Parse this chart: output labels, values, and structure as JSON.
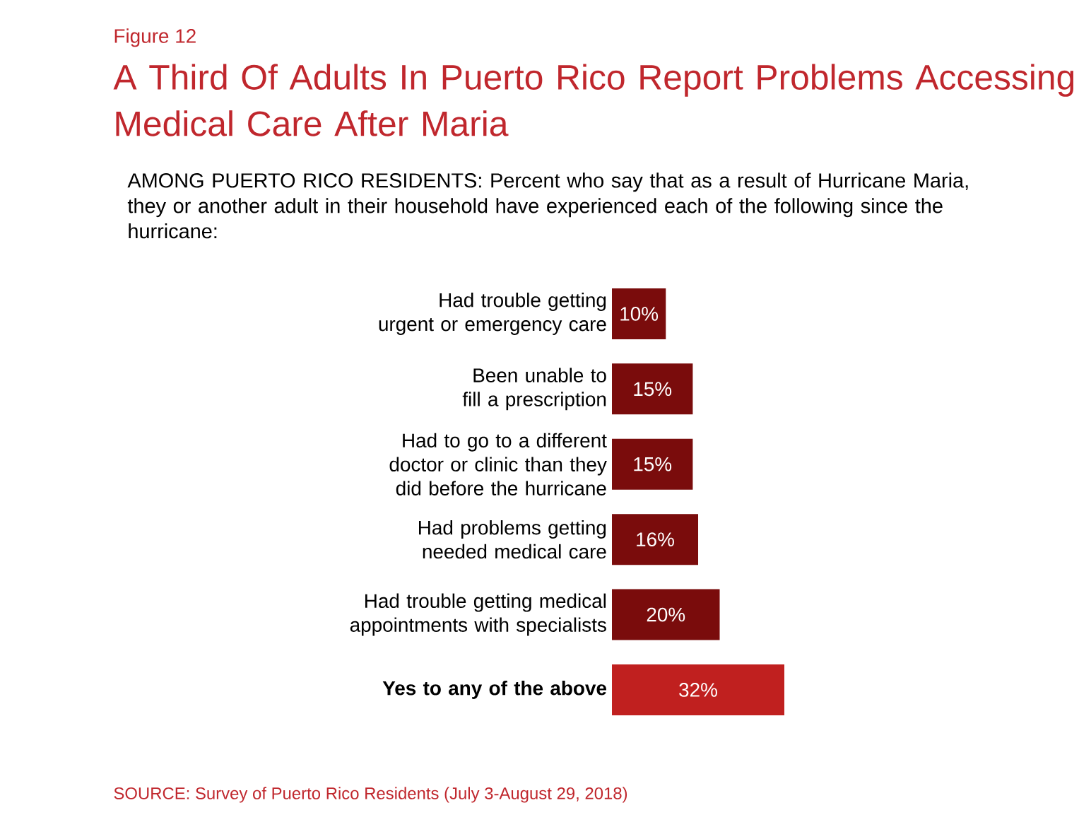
{
  "chart_data": {
    "type": "bar",
    "orientation": "horizontal",
    "title": "A Third Of Adults In Puerto Rico Report Problems Accessing Medical Care After Maria",
    "subtitle": "AMONG PUERTO RICO RESIDENTS: Percent who say that as a result of Hurricane Maria, they or another adult in their household have experienced each of the following since the hurricane:",
    "annotations": [
      "Figure 12",
      "SOURCE: Survey of Puerto Rico Residents (July 3-August 29, 2018)"
    ],
    "categories": [
      "Had trouble getting urgent or emergency care",
      "Been unable to fill a prescription",
      "Had to go to a different doctor or clinic than they did before the hurricane",
      "Had problems getting needed medical care",
      "Had trouble getting medical appointments with specialists",
      "Yes to any of the above"
    ],
    "values": [
      10,
      15,
      15,
      16,
      20,
      32
    ],
    "colors": [
      "#7a0c0c",
      "#7a0c0c",
      "#7a0c0c",
      "#7a0c0c",
      "#7a0c0c",
      "#c0201f"
    ],
    "value_labels": [
      "10%",
      "15%",
      "15%",
      "16%",
      "20%",
      "32%"
    ]
  }
}
